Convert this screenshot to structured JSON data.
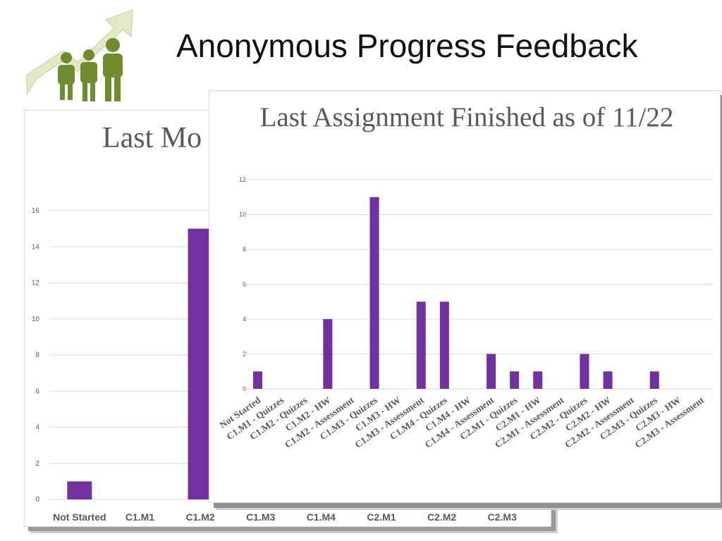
{
  "slide": {
    "title": "Anonymous Progress Feedback",
    "logo_icon": "people-growth-arrow-icon",
    "accent_color": "#6f8c2f"
  },
  "chart_data": [
    {
      "id": "back",
      "type": "bar",
      "title": "Last Mo",
      "categories": [
        "Not Started",
        "C1.M1",
        "C1.M2",
        "C1.M3",
        "C1.M4",
        "C2.M1",
        "C2.M2",
        "C2.M3"
      ],
      "values": [
        1,
        null,
        15,
        null,
        null,
        null,
        null,
        null
      ],
      "ylim": [
        0,
        16
      ],
      "yticks": [
        0,
        2,
        4,
        6,
        8,
        10,
        12,
        14,
        16
      ],
      "grid": true,
      "bar_color": "#7030a0"
    },
    {
      "id": "front",
      "type": "bar",
      "title": "Last Assignment Finished as of 11/22",
      "categories": [
        "Not Started",
        "C1.M1 - Quizzes",
        "C1.M2 - Quizzes",
        "C1.M2 - HW",
        "C1.M2 - Assessment",
        "C1.M3 - Quizzes",
        "C1.M3 - HW",
        "C1.M3 - Assessment",
        "C1.M4 - Quizzes",
        "C1.M4 - HW",
        "C1.M4 - Assessment",
        "C2.M1 - Quizzes",
        "C2.M1 - HW",
        "C2.M1 - Assessment",
        "C2.M2 - Quizzes",
        "C2.M2 - HW",
        "C2.M2 - Assessment",
        "C2.M3 - Quizzes",
        "C2.M3 - HW",
        "C2.M3 - Assessment"
      ],
      "values": [
        1,
        0,
        0,
        4,
        0,
        11,
        0,
        5,
        5,
        0,
        2,
        1,
        1,
        0,
        2,
        1,
        0,
        1,
        0,
        0
      ],
      "ylim": [
        0,
        12
      ],
      "yticks": [
        0,
        2,
        4,
        6,
        8,
        10,
        12
      ],
      "grid": true,
      "bar_color": "#7030a0"
    }
  ]
}
